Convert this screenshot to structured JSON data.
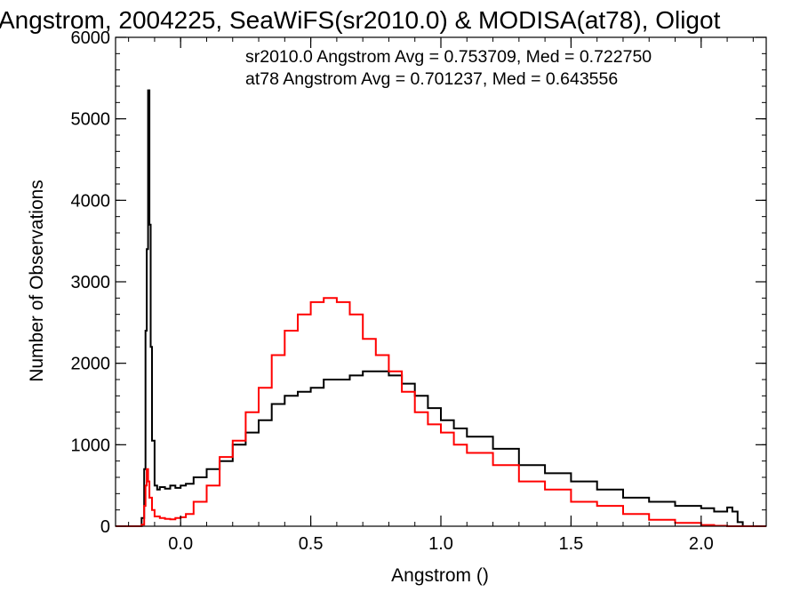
{
  "chart_data": {
    "type": "line",
    "title": "Angstrom, 2004225, SeaWiFS(sr2010.0) & MODISA(at78), Oligot",
    "xlabel": "Angstrom ()",
    "ylabel": "Number of Observations",
    "xlim": [
      -0.25,
      2.25
    ],
    "ylim": [
      0,
      6000
    ],
    "xticks": [
      0.0,
      0.5,
      1.0,
      1.5,
      2.0
    ],
    "xtick_labels": [
      "0.0",
      "0.5",
      "1.0",
      "1.5",
      "2.0"
    ],
    "yticks": [
      0,
      1000,
      2000,
      3000,
      4000,
      5000,
      6000
    ],
    "ytick_labels": [
      "0",
      "1000",
      "2000",
      "3000",
      "4000",
      "5000",
      "6000"
    ],
    "grid": false,
    "annotations": [
      {
        "text": "sr2010.0 Angstrom Avg = 0.753709, Med = 0.722750",
        "color": "#000000"
      },
      {
        "text": "at78 Angstrom Avg = 0.701237, Med = 0.643556",
        "color": "#ff0000"
      }
    ],
    "series": [
      {
        "color": "#000000",
        "x": [
          -0.25,
          -0.16,
          -0.155,
          -0.15,
          -0.14,
          -0.135,
          -0.13,
          -0.125,
          -0.12,
          -0.115,
          -0.11,
          -0.1,
          -0.09,
          -0.08,
          -0.06,
          -0.04,
          -0.02,
          0.0,
          0.02,
          0.05,
          0.1,
          0.15,
          0.2,
          0.25,
          0.3,
          0.35,
          0.4,
          0.45,
          0.5,
          0.55,
          0.6,
          0.65,
          0.7,
          0.75,
          0.8,
          0.85,
          0.9,
          0.95,
          1.0,
          1.05,
          1.1,
          1.2,
          1.3,
          1.4,
          1.5,
          1.6,
          1.7,
          1.8,
          1.9,
          2.0,
          2.05,
          2.1,
          2.12,
          2.14,
          2.16,
          2.25
        ],
        "values": [
          0,
          0,
          0,
          100,
          700,
          2400,
          3400,
          5350,
          3700,
          2200,
          1050,
          500,
          450,
          480,
          460,
          500,
          470,
          500,
          520,
          600,
          700,
          800,
          1000,
          1150,
          1300,
          1500,
          1600,
          1650,
          1700,
          1800,
          1800,
          1850,
          1900,
          1900,
          1850,
          1750,
          1600,
          1450,
          1300,
          1200,
          1100,
          950,
          750,
          650,
          550,
          450,
          350,
          300,
          250,
          220,
          180,
          230,
          180,
          50,
          0,
          0
        ]
      },
      {
        "color": "#ff0000",
        "x": [
          -0.25,
          -0.16,
          -0.155,
          -0.15,
          -0.14,
          -0.135,
          -0.13,
          -0.125,
          -0.12,
          -0.11,
          -0.1,
          -0.08,
          -0.06,
          -0.04,
          -0.02,
          0.0,
          0.02,
          0.05,
          0.1,
          0.15,
          0.2,
          0.25,
          0.3,
          0.35,
          0.4,
          0.45,
          0.5,
          0.55,
          0.6,
          0.65,
          0.7,
          0.75,
          0.8,
          0.85,
          0.9,
          0.95,
          1.0,
          1.05,
          1.1,
          1.2,
          1.3,
          1.4,
          1.5,
          1.6,
          1.7,
          1.8,
          1.9,
          2.0,
          2.05,
          2.1,
          2.15,
          2.25
        ],
        "values": [
          0,
          0,
          0,
          20,
          250,
          500,
          700,
          550,
          350,
          200,
          120,
          100,
          90,
          85,
          100,
          110,
          150,
          300,
          500,
          850,
          1050,
          1400,
          1700,
          2100,
          2400,
          2600,
          2750,
          2800,
          2750,
          2600,
          2300,
          2100,
          1900,
          1650,
          1400,
          1250,
          1150,
          1000,
          900,
          750,
          550,
          450,
          300,
          250,
          150,
          80,
          40,
          15,
          5,
          0,
          0,
          0
        ]
      }
    ]
  }
}
